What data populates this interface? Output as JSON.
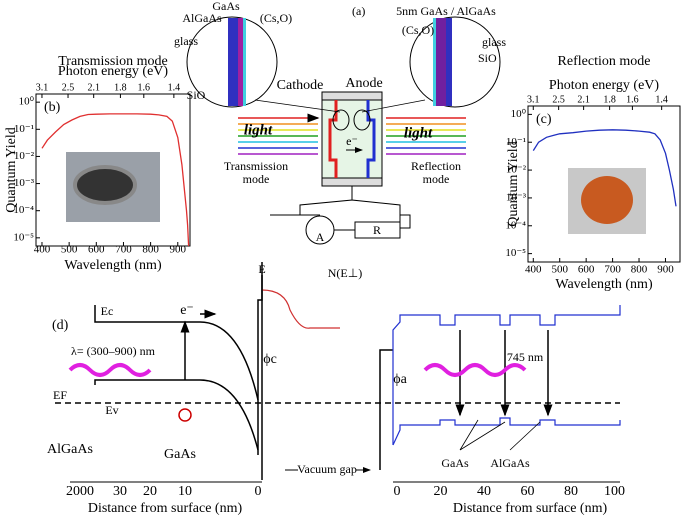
{
  "chart_data": [
    {
      "type": "line",
      "panel_label": "(b)",
      "title": "Transmission mode",
      "x_label": "Wavelength (nm)",
      "x2_label": "Photon energy (eV)",
      "y_label": "Quantum Yield",
      "log_y": true,
      "color": "#e03030",
      "x": [
        400,
        420,
        450,
        480,
        510,
        540,
        570,
        600,
        650,
        700,
        750,
        800,
        830,
        860,
        880,
        900,
        915,
        925,
        932,
        936,
        940
      ],
      "values": [
        0.02,
        0.04,
        0.08,
        0.15,
        0.22,
        0.3,
        0.35,
        0.36,
        0.37,
        0.37,
        0.37,
        0.36,
        0.34,
        0.3,
        0.2,
        0.05,
        0.005,
        0.0005,
        0.0001,
        3e-05,
        5e-06
      ],
      "xlim": [
        378,
        945
      ],
      "ylim": [
        5e-06,
        2
      ],
      "xticks": [
        400,
        500,
        600,
        700,
        800,
        900
      ],
      "x2ticks": [
        3.1,
        2.5,
        2.1,
        1.8,
        1.6,
        1.4
      ],
      "yticks": [
        {
          "value": 1,
          "label": "10⁰"
        },
        {
          "value": 0.1,
          "label": "10⁻¹"
        },
        {
          "value": 0.01,
          "label": "10⁻²"
        },
        {
          "value": 0.001,
          "label": "10⁻³"
        },
        {
          "value": 0.0001,
          "label": "10⁻⁴"
        },
        {
          "value": 1e-05,
          "label": "10⁻⁵"
        }
      ]
    },
    {
      "type": "line",
      "panel_label": "(c)",
      "title": "Reflection mode",
      "x_label": "Wavelength (nm)",
      "x2_label": "Photon energy (eV)",
      "y_label": "Quantum Yield",
      "log_y": true,
      "color": "#2030c0",
      "x": [
        400,
        420,
        450,
        480,
        500,
        550,
        600,
        650,
        700,
        750,
        800,
        840,
        860,
        880,
        900,
        915,
        930,
        940
      ],
      "values": [
        0.05,
        0.1,
        0.15,
        0.18,
        0.2,
        0.22,
        0.25,
        0.27,
        0.28,
        0.27,
        0.25,
        0.23,
        0.2,
        0.12,
        0.04,
        0.01,
        0.002,
        0.0005
      ],
      "xlim": [
        380,
        955
      ],
      "ylim": [
        5e-06,
        2
      ],
      "xticks": [
        400,
        500,
        600,
        700,
        800,
        900
      ],
      "x2ticks": [
        3.1,
        2.5,
        2.1,
        1.8,
        1.6,
        1.4
      ],
      "yticks": [
        {
          "value": 1,
          "label": "10⁰"
        },
        {
          "value": 0.1,
          "label": "10⁻¹"
        },
        {
          "value": 0.01,
          "label": "10⁻²"
        },
        {
          "value": 0.001,
          "label": "10⁻³"
        },
        {
          "value": 0.0001,
          "label": "10⁻⁴"
        },
        {
          "value": 1e-05,
          "label": "10⁻⁵"
        }
      ]
    }
  ],
  "panel_a": {
    "label": "(a)",
    "gaas": "GaAs",
    "algaas": "AlGaAs",
    "cso_left": "(Cs,O)",
    "glass_left": "glass",
    "sio_left": "SiO",
    "cathode": "Cathode",
    "anode": "Anode",
    "light_left": "light",
    "trans_1": "Transmission",
    "trans_2": "mode",
    "electron": "e⁻",
    "light_right": "light",
    "refl_1": "Reflection",
    "refl_2": "mode",
    "ammeter": "A",
    "resistor": "R",
    "layers_right": "5nm GaAs / AlGaAs",
    "cso_right": "(Cs,O)",
    "glass_right": "glass",
    "sio_right": "SiO"
  },
  "panel_d": {
    "label": "(d)",
    "energy": "E",
    "n_e": "N(E⊥)",
    "ec": "Ec",
    "electron": "e⁻",
    "lambda": "λ= (300–900) nm",
    "ef": "EF",
    "ev": "Ev",
    "phi_c": "ϕc",
    "phi_a": "ϕa",
    "wavelength_745": "745 nm",
    "algaas_left": "AlGaAs",
    "gaas_left": "GaAs",
    "vacuum_gap": "Vacuum gap",
    "gaas_right": "GaAs",
    "algaas_right": "AlGaAs",
    "left_ticks": [
      "2000",
      "30",
      "20",
      "10",
      "0"
    ],
    "right_ticks": [
      "0",
      "20",
      "40",
      "60",
      "80",
      "100"
    ],
    "left_axis_label": "Distance from surface (nm)",
    "right_axis_label": "Distance from surface (nm)"
  }
}
